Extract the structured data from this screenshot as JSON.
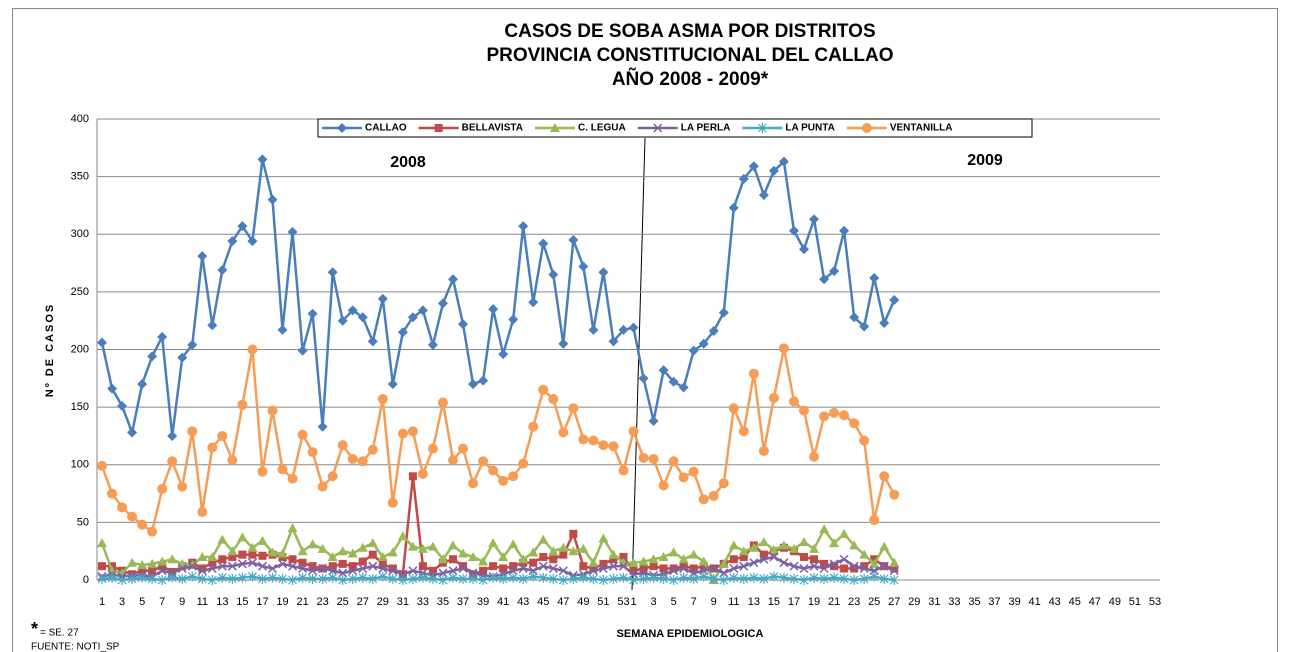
{
  "chart_data": {
    "type": "line",
    "title": [
      "CASOS DE SOBA ASMA POR DISTRITOS",
      "PROVINCIA CONSTITUCIONAL DEL CALLAO",
      "AÑO 2008 - 2009*"
    ],
    "y_label": "Nº DE CASOS",
    "x_label": "SEMANA EPIDEMIOLOGICA",
    "annotations": [
      "2008",
      "2009"
    ],
    "footnote_mark": "*",
    "footnote": "= SE.  27",
    "source": "FUENTE: NOTI_SP",
    "ylim": [
      0,
      400
    ],
    "yticks": [
      0,
      50,
      100,
      150,
      200,
      250,
      300,
      350,
      400
    ],
    "grid": true,
    "categories": [
      1,
      null,
      3,
      null,
      5,
      null,
      7,
      null,
      9,
      null,
      11,
      null,
      13,
      null,
      15,
      null,
      17,
      null,
      19,
      null,
      21,
      null,
      23,
      null,
      25,
      null,
      27,
      null,
      29,
      null,
      31,
      null,
      33,
      null,
      35,
      null,
      37,
      null,
      39,
      null,
      41,
      null,
      43,
      null,
      45,
      null,
      47,
      null,
      49,
      null,
      51,
      null,
      53,
      1,
      null,
      3,
      null,
      5,
      null,
      7,
      null,
      9,
      null,
      11,
      null,
      13,
      null,
      15,
      null,
      17,
      null,
      19,
      null,
      21,
      null,
      23,
      null,
      25,
      null,
      27,
      null,
      29,
      null,
      31,
      null,
      33,
      null,
      35,
      null,
      37,
      null,
      39,
      null,
      41,
      null,
      43,
      null,
      45,
      null,
      47,
      null,
      49,
      null,
      51,
      null,
      53
    ],
    "series": [
      {
        "name": "CALLAO",
        "color": "#4a7ebb",
        "marker": "diamond",
        "values": [
          206,
          166,
          151,
          128,
          170,
          194,
          211,
          125,
          193,
          204,
          281,
          221,
          269,
          294,
          307,
          294,
          365,
          330,
          217,
          302,
          199,
          231,
          133,
          267,
          225,
          234,
          228,
          207,
          244,
          170,
          215,
          228,
          234,
          204,
          240,
          261,
          222,
          170,
          173,
          235,
          196,
          226,
          307,
          241,
          292,
          265,
          205,
          295,
          272,
          217,
          267,
          207,
          217,
          219,
          175,
          138,
          182,
          172,
          167,
          199,
          205,
          216,
          232,
          323,
          348,
          359,
          334,
          355,
          363,
          303,
          287,
          313,
          261,
          268,
          303,
          228,
          220,
          262,
          223,
          243,
          null,
          null,
          null,
          null,
          null,
          null,
          null,
          null,
          null,
          null,
          null,
          null,
          null,
          null,
          null,
          null,
          null,
          null,
          null,
          null,
          null,
          null,
          null,
          null,
          null,
          null
        ]
      },
      {
        "name": "BELLAVISTA",
        "color": "#be4b48",
        "marker": "square",
        "values": [
          12,
          12,
          8,
          5,
          8,
          8,
          12,
          7,
          12,
          15,
          10,
          15,
          18,
          20,
          22,
          22,
          21,
          22,
          20,
          18,
          15,
          12,
          10,
          12,
          14,
          12,
          16,
          22,
          14,
          10,
          5,
          90,
          12,
          8,
          15,
          18,
          12,
          5,
          8,
          12,
          10,
          12,
          15,
          15,
          20,
          18,
          22,
          40,
          12,
          10,
          14,
          18,
          20,
          8,
          10,
          12,
          10,
          10,
          12,
          10,
          12,
          10,
          14,
          18,
          20,
          30,
          22,
          25,
          28,
          25,
          20,
          18,
          14,
          12,
          10,
          10,
          12,
          18,
          12,
          10,
          null,
          null,
          null,
          null,
          null,
          null,
          null,
          null,
          null,
          null,
          null,
          null,
          null,
          null,
          null,
          null,
          null,
          null,
          null,
          null,
          null,
          null,
          null,
          null,
          null,
          null
        ]
      },
      {
        "name": "C. LEGUA",
        "color": "#98b954",
        "marker": "triangle",
        "values": [
          32,
          8,
          6,
          15,
          13,
          14,
          16,
          18,
          14,
          13,
          20,
          20,
          35,
          25,
          37,
          28,
          34,
          24,
          23,
          45,
          25,
          31,
          27,
          20,
          25,
          23,
          28,
          32,
          20,
          24,
          38,
          29,
          27,
          29,
          18,
          30,
          23,
          20,
          16,
          32,
          20,
          31,
          18,
          24,
          35,
          25,
          28,
          25,
          27,
          15,
          36,
          22,
          15,
          15,
          16,
          18,
          20,
          24,
          18,
          22,
          16,
          0,
          14,
          30,
          25,
          28,
          33,
          26,
          30,
          27,
          33,
          27,
          44,
          32,
          40,
          30,
          22,
          14,
          29,
          15,
          null,
          null,
          null,
          null,
          null,
          null,
          null,
          null,
          null,
          null,
          null,
          null,
          null,
          null,
          null,
          null,
          null,
          null,
          null,
          null,
          null,
          null,
          null,
          null,
          null,
          null
        ]
      },
      {
        "name": "LA PERLA",
        "color": "#7d60a0",
        "marker": "x",
        "values": [
          3,
          5,
          3,
          4,
          4,
          3,
          8,
          6,
          10,
          12,
          8,
          10,
          12,
          12,
          14,
          15,
          12,
          10,
          14,
          12,
          10,
          8,
          10,
          8,
          6,
          8,
          10,
          12,
          10,
          8,
          5,
          8,
          6,
          4,
          6,
          8,
          10,
          6,
          4,
          3,
          5,
          8,
          10,
          8,
          12,
          10,
          8,
          4,
          5,
          8,
          10,
          12,
          12,
          5,
          6,
          4,
          5,
          8,
          10,
          6,
          8,
          10,
          6,
          10,
          12,
          15,
          18,
          20,
          15,
          12,
          10,
          12,
          10,
          14,
          18,
          12,
          10,
          8,
          12,
          8,
          null,
          null,
          null,
          null,
          null,
          null,
          null,
          null,
          null,
          null,
          null,
          null,
          null,
          null,
          null,
          null,
          null,
          null,
          null,
          null,
          null,
          null,
          null,
          null,
          null,
          null
        ]
      },
      {
        "name": "LA PUNTA",
        "color": "#46aac5",
        "marker": "star",
        "values": [
          1,
          2,
          0,
          1,
          2,
          1,
          0,
          2,
          1,
          3,
          1,
          0,
          2,
          1,
          2,
          3,
          1,
          2,
          1,
          0,
          2,
          1,
          1,
          2,
          0,
          1,
          2,
          1,
          3,
          1,
          0,
          1,
          2,
          1,
          0,
          2,
          1,
          1,
          0,
          2,
          1,
          2,
          1,
          3,
          2,
          1,
          0,
          1,
          2,
          1,
          0,
          1,
          2,
          0,
          1,
          2,
          1,
          0,
          2,
          1,
          3,
          1,
          0,
          2,
          1,
          2,
          1,
          3,
          2,
          1,
          0,
          2,
          1,
          2,
          1,
          0,
          1,
          3,
          1,
          0,
          null,
          null,
          null,
          null,
          null,
          null,
          null,
          null,
          null,
          null,
          null,
          null,
          null,
          null,
          null,
          null,
          null,
          null,
          null,
          null,
          null,
          null,
          null,
          null,
          null,
          null
        ]
      },
      {
        "name": "VENTANILLA",
        "color": "#f59d56",
        "marker": "circle",
        "values": [
          99,
          75,
          63,
          55,
          48,
          42,
          79,
          103,
          81,
          129,
          59,
          115,
          125,
          104,
          152,
          200,
          94,
          147,
          96,
          88,
          126,
          111,
          81,
          90,
          117,
          105,
          103,
          113,
          157,
          67,
          127,
          129,
          92,
          114,
          154,
          104,
          114,
          84,
          103,
          95,
          86,
          90,
          101,
          133,
          165,
          157,
          128,
          149,
          122,
          121,
          117,
          116,
          95,
          129,
          106,
          105,
          82,
          103,
          89,
          94,
          70,
          73,
          84,
          149,
          129,
          179,
          112,
          158,
          201,
          155,
          147,
          107,
          142,
          145,
          143,
          136,
          121,
          52,
          90,
          74,
          null,
          null,
          null,
          null,
          null,
          null,
          null,
          null,
          null,
          null,
          null,
          null,
          null,
          null,
          null,
          null,
          null,
          null,
          null,
          null,
          null,
          null,
          null,
          null,
          null,
          null
        ]
      }
    ]
  }
}
